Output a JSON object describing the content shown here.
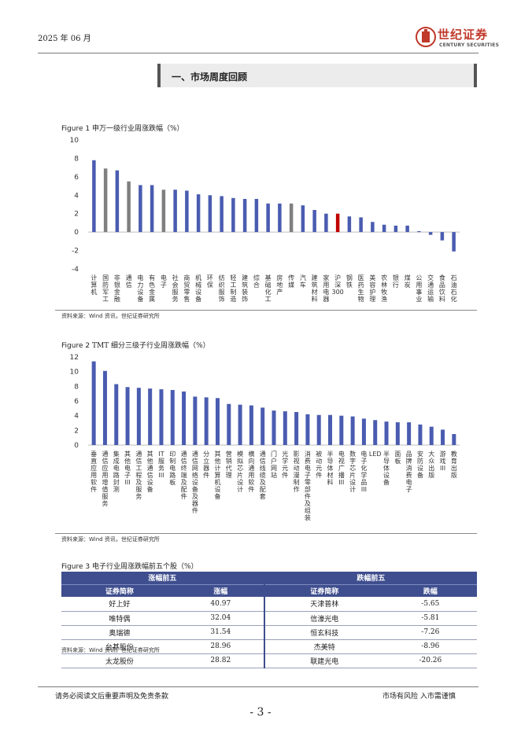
{
  "header": {
    "date": "2025 年 06 月",
    "logo_cn": "世纪证券",
    "logo_en": "CENTURY SECURITIES"
  },
  "section": {
    "title": "一、市场周度回顾"
  },
  "figure1": {
    "label": "Figure 1",
    "title": "申万一级行业周涨跌幅（%）",
    "source": "资料来源：Wind 资讯，世纪证券研究所"
  },
  "figure2": {
    "label": "Figure 2",
    "title": "TMT 细分三级子行业周涨跌幅（%）",
    "source": "资料来源：Wind 资讯，世纪证券研究所"
  },
  "figure3": {
    "label": "Figure 3",
    "title": "电子行业周涨跌幅前五个股（%）",
    "source": "资料来源：Wind 资讯，世纪证券研究所",
    "gain_header": "涨幅前五",
    "loss_header": "跌幅前五",
    "col_name": "证券简称",
    "col_gain": "涨幅",
    "col_loss": "跌幅",
    "rows": [
      {
        "g_name": "好上好",
        "g_val": "40.97",
        "l_name": "天津普林",
        "l_val": "-5.65"
      },
      {
        "g_name": "唯特偶",
        "g_val": "32.04",
        "l_name": "信濠光电",
        "l_val": "-5.81"
      },
      {
        "g_name": "奥瑞德",
        "g_val": "31.54",
        "l_name": "恒玄科技",
        "l_val": "-7.26"
      },
      {
        "g_name": "台基股份",
        "g_val": "28.96",
        "l_name": "杰美特",
        "l_val": "-8.96"
      },
      {
        "g_name": "太龙股份",
        "g_val": "28.82",
        "l_name": "联建光电",
        "l_val": "-20.26"
      }
    ]
  },
  "footer": {
    "left": "请务必阅读文后重要声明及免责条款",
    "right": "市场有风险 入市需谨慎",
    "page": "- 3 -"
  },
  "colors": {
    "bar": "#4a5cb0",
    "highlight_gray": "#7f7f7f",
    "highlight_red": "#c00000",
    "table_header": "#3f4e8e"
  },
  "chart_data": [
    {
      "type": "bar",
      "ylim": [
        -4,
        10
      ],
      "yticks": [
        -4,
        -2,
        0,
        2,
        4,
        6,
        8,
        10
      ],
      "categories": [
        "计算机",
        "国防军工",
        "非银金融",
        "通信",
        "电力设备",
        "有色金属",
        "电子",
        "社会服务",
        "商贸零售",
        "机械设备",
        "环保",
        "纺织服饰",
        "轻工制造",
        "建筑装饰",
        "综合",
        "基础化工",
        "房地产",
        "传媒",
        "汽车",
        "建筑材料",
        "家用电器",
        "沪深300",
        "钢铁",
        "医药生物",
        "美容护理",
        "农林牧渔",
        "银行",
        "煤炭",
        "公用事业",
        "交通运输",
        "食品饮料",
        "石油石化"
      ],
      "values": [
        7.8,
        6.9,
        6.7,
        5.5,
        5.1,
        5.1,
        4.6,
        4.6,
        4.5,
        4.1,
        4.0,
        3.9,
        3.7,
        3.6,
        3.6,
        3.1,
        3.1,
        3.1,
        2.9,
        2.4,
        2.0,
        2.0,
        1.7,
        1.6,
        1.1,
        0.8,
        0.7,
        0.7,
        0.1,
        -0.3,
        -0.9,
        -2.1
      ],
      "highlight": {
        "国防军工": "gray",
        "通信": "gray",
        "电子": "gray",
        "传媒": "gray",
        "沪深300": "red"
      }
    },
    {
      "type": "bar",
      "ylim": [
        0,
        12
      ],
      "yticks": [
        0,
        2,
        4,
        6,
        8,
        10,
        12
      ],
      "categories": [
        "垂直应用软件",
        "通信应用增值服务",
        "集成电路封测",
        "其他电子III",
        "通信工程及服务",
        "其他通信设备",
        "IT服务III",
        "印制电路板",
        "通信终端及配件",
        "通信网络设备及器件",
        "分立器件",
        "其他计算机设备",
        "营销代理",
        "模拟芯片设计",
        "横向通用软件",
        "通信线缆及配套",
        "门户网站",
        "光学元件",
        "影视动漫制作",
        "消费电子零部件及组装",
        "被动元件",
        "半导体材料",
        "电视广播III",
        "数字芯片设计",
        "电子化学品III",
        "LED",
        "半导体设备",
        "面板",
        "品牌消费电子",
        "安防设备",
        "大众出版",
        "游戏III",
        "教育出版"
      ],
      "values": [
        11.4,
        10.1,
        8.3,
        7.9,
        7.8,
        7.7,
        7.6,
        7.5,
        7.3,
        6.6,
        6.5,
        6.4,
        5.6,
        5.5,
        5.4,
        5.1,
        4.7,
        4.6,
        4.5,
        4.2,
        4.1,
        4.1,
        4.0,
        3.9,
        3.6,
        3.4,
        3.2,
        3.1,
        3.1,
        2.8,
        2.5,
        2.1,
        1.5
      ]
    }
  ]
}
